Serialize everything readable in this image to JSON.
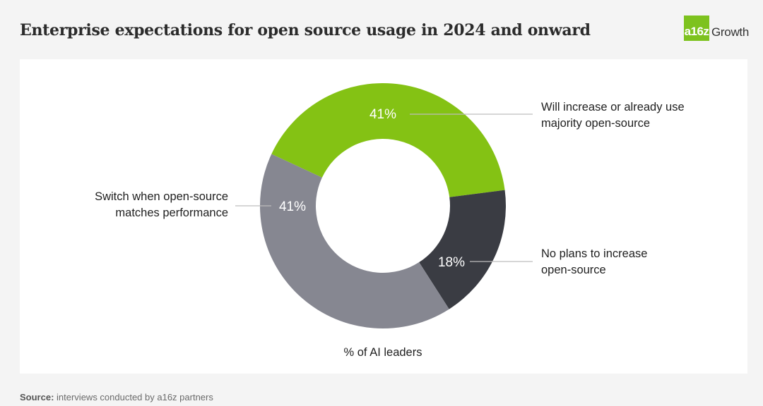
{
  "header": {
    "title": "Enterprise expectations for open source usage in 2024 and onward"
  },
  "logo": {
    "mark": "a16z",
    "text": "Growth",
    "color": "#7dc21e"
  },
  "chart_data": {
    "type": "pie",
    "donut": true,
    "caption": "% of AI leaders",
    "slices": [
      {
        "label_lines": [
          "Will increase or already use",
          "majority open-source"
        ],
        "value": 41,
        "value_label": "41%",
        "color": "#84c214"
      },
      {
        "label_lines": [
          "No plans to increase",
          "open-source"
        ],
        "value": 18,
        "value_label": "18%",
        "color": "#3a3c43"
      },
      {
        "label_lines": [
          "Switch when open-source",
          "matches performance"
        ],
        "value": 41,
        "value_label": "41%",
        "color": "#868791"
      }
    ]
  },
  "footer": {
    "source_label": "Source:",
    "source_text": " interviews conducted by a16z partners"
  }
}
